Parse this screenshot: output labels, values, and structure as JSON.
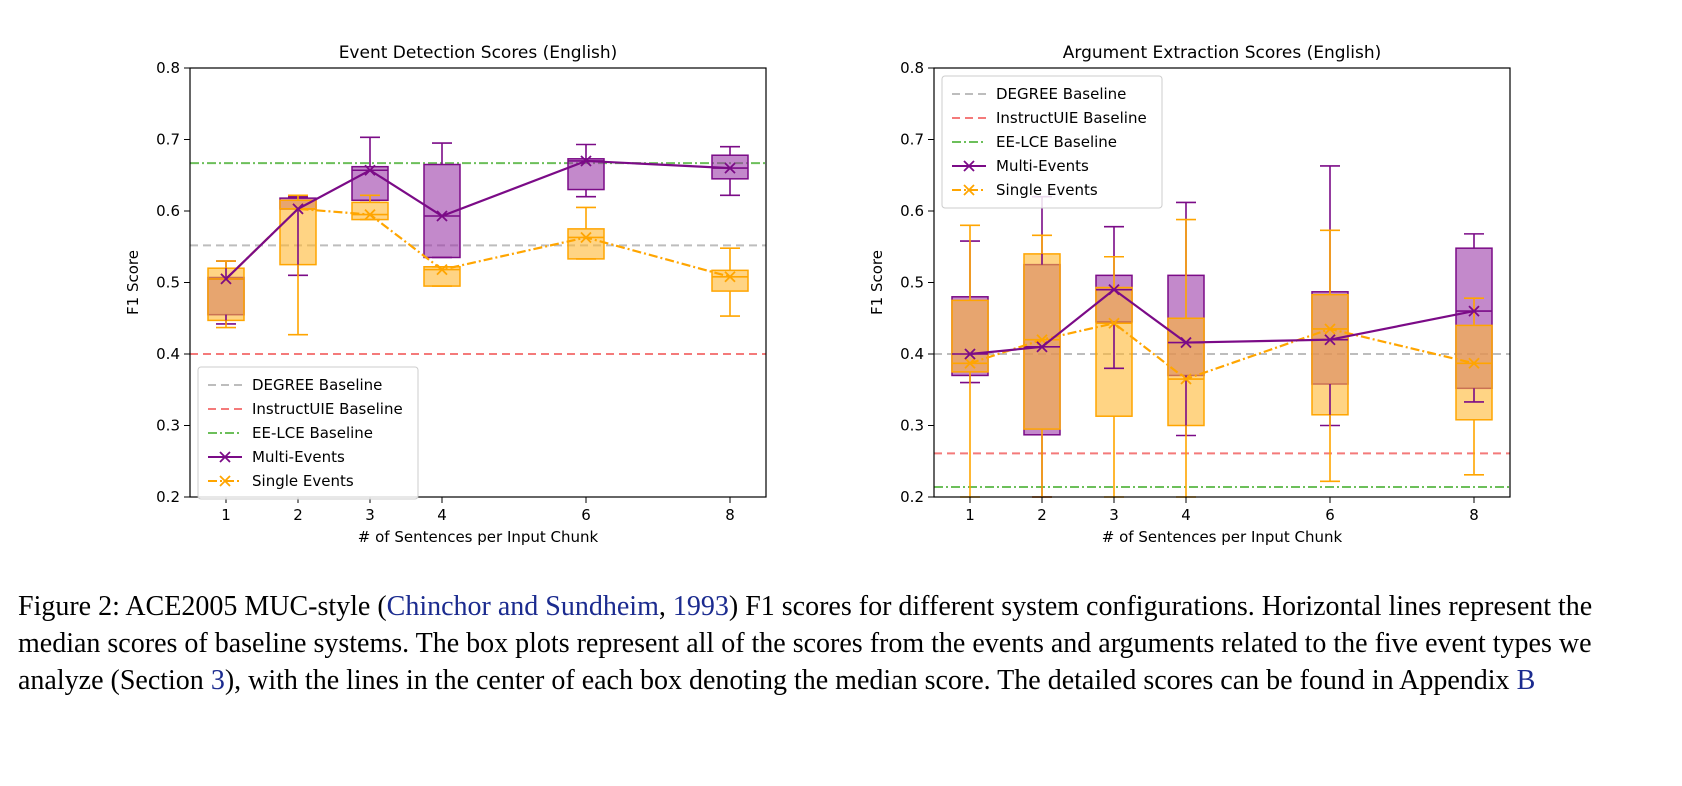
{
  "chart_data": [
    {
      "type": "box",
      "title": "Event Detection Scores (English)",
      "xlabel": "# of Sentences per Input Chunk",
      "ylabel": "F1 Score",
      "x_ticks": [
        1,
        2,
        3,
        4,
        6,
        8
      ],
      "xlim": [
        0.5,
        8.5
      ],
      "ylim": [
        0.2,
        0.8
      ],
      "y_ticks": [
        "0.2",
        "0.3",
        "0.4",
        "0.5",
        "0.6",
        "0.7",
        "0.8"
      ],
      "legend_position": "lower-left",
      "baselines": [
        {
          "name": "DEGREE Baseline",
          "value": 0.552,
          "color": "#bdbdbd",
          "style": "dashed"
        },
        {
          "name": "InstructUIE Baseline",
          "value": 0.4,
          "color": "#f47a7a",
          "style": "dashed"
        },
        {
          "name": "EE-LCE Baseline",
          "value": 0.667,
          "color": "#6cbf5a",
          "style": "dashdot"
        }
      ],
      "series": [
        {
          "name": "Multi-Events",
          "color": "#7b0b87",
          "fill": "#9b3aa8",
          "marker": "x",
          "line": "solid",
          "x": [
            1,
            2,
            3,
            4,
            6,
            8
          ],
          "median": [
            0.505,
            0.603,
            0.657,
            0.593,
            0.67,
            0.66
          ],
          "q1": [
            0.455,
            0.603,
            0.615,
            0.535,
            0.63,
            0.645
          ],
          "q3": [
            0.507,
            0.618,
            0.662,
            0.665,
            0.673,
            0.678
          ],
          "whisker_low": [
            0.442,
            0.51,
            0.615,
            0.535,
            0.62,
            0.622
          ],
          "whisker_high": [
            0.53,
            0.62,
            0.703,
            0.695,
            0.693,
            0.69
          ]
        },
        {
          "name": "Single Events",
          "color": "#ffa500",
          "fill": "#ffb732",
          "marker": "x",
          "line": "dashdot",
          "x": [
            1,
            2,
            3,
            4,
            6,
            8
          ],
          "median": [
            0.505,
            0.603,
            0.595,
            0.518,
            0.563,
            0.508
          ],
          "q1": [
            0.447,
            0.525,
            0.588,
            0.495,
            0.533,
            0.488
          ],
          "q3": [
            0.52,
            0.615,
            0.612,
            0.522,
            0.575,
            0.517
          ],
          "whisker_low": [
            0.437,
            0.427,
            0.588,
            0.495,
            0.533,
            0.453
          ],
          "whisker_high": [
            0.53,
            0.622,
            0.622,
            0.522,
            0.605,
            0.548
          ]
        }
      ]
    },
    {
      "type": "box",
      "title": "Argument Extraction Scores (English)",
      "xlabel": "# of Sentences per Input Chunk",
      "ylabel": "F1 Score",
      "x_ticks": [
        1,
        2,
        3,
        4,
        6,
        8
      ],
      "xlim": [
        0.5,
        8.5
      ],
      "ylim": [
        0.2,
        0.8
      ],
      "y_ticks": [
        "0.2",
        "0.3",
        "0.4",
        "0.5",
        "0.6",
        "0.7",
        "0.8"
      ],
      "legend_position": "upper-left",
      "baselines": [
        {
          "name": "DEGREE Baseline",
          "value": 0.4,
          "color": "#bdbdbd",
          "style": "dashed"
        },
        {
          "name": "InstructUIE Baseline",
          "value": 0.261,
          "color": "#f47a7a",
          "style": "dashed"
        },
        {
          "name": "EE-LCE Baseline",
          "value": 0.214,
          "color": "#6cbf5a",
          "style": "dashdot"
        }
      ],
      "series": [
        {
          "name": "Multi-Events",
          "color": "#7b0b87",
          "fill": "#9b3aa8",
          "marker": "x",
          "line": "solid",
          "x": [
            1,
            2,
            3,
            4,
            6,
            8
          ],
          "median": [
            0.4,
            0.41,
            0.49,
            0.416,
            0.42,
            0.46
          ],
          "q1": [
            0.37,
            0.287,
            0.445,
            0.37,
            0.358,
            0.352
          ],
          "q3": [
            0.48,
            0.525,
            0.51,
            0.51,
            0.487,
            0.548
          ],
          "whisker_low": [
            0.36,
            0.2,
            0.38,
            0.286,
            0.3,
            0.333
          ],
          "whisker_high": [
            0.558,
            0.62,
            0.578,
            0.612,
            0.663,
            0.568
          ]
        },
        {
          "name": "Single Events",
          "color": "#ffa500",
          "fill": "#ffb732",
          "marker": "x",
          "line": "dashdot",
          "x": [
            1,
            2,
            3,
            4,
            6,
            8
          ],
          "median": [
            0.387,
            0.42,
            0.443,
            0.365,
            0.435,
            0.387
          ],
          "q1": [
            0.375,
            0.295,
            0.313,
            0.3,
            0.315,
            0.308
          ],
          "q3": [
            0.475,
            0.54,
            0.493,
            0.45,
            0.483,
            0.44
          ],
          "whisker_low": [
            0.2,
            0.2,
            0.2,
            0.2,
            0.222,
            0.231
          ],
          "whisker_high": [
            0.58,
            0.566,
            0.536,
            0.588,
            0.573,
            0.478
          ]
        }
      ]
    }
  ],
  "caption": {
    "prefix": "Figure 2: ACE2005 MUC-style (",
    "cite_authors": "Chinchor and Sundheim",
    "cite_sep": ", ",
    "cite_year": "1993",
    "mid1": ") F1 scores for different system configurations. Horizontal lines represent the median scores of baseline systems. The box plots represent all of the scores from the events and arguments related to the five event types we analyze (Section ",
    "section_ref": "3",
    "mid2": "), with the lines in the center of each box denoting the median score. The detailed scores can be found in Appendix ",
    "appendix_ref": "B"
  }
}
